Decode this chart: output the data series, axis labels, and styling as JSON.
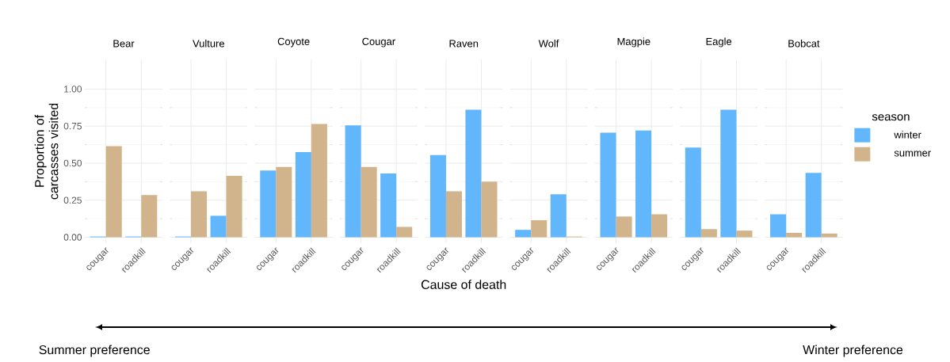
{
  "chart_data": [
    {
      "type": "bar",
      "title": "Bear",
      "ylabel": "Proportion of carcasses visited",
      "categories": [
        "cougar",
        "roadkill"
      ],
      "series": [
        {
          "color": "#62b6fb",
          "values": [
            0.005,
            0.005
          ]
        },
        {
          "color": "#d2b48c",
          "values": [
            0.615,
            0.285
          ]
        }
      ],
      "ylim": [
        -0.04,
        1.2
      ],
      "yticks": [
        {
          "value": 0,
          "label": "0.00"
        },
        {
          "value": 0.25,
          "label": "0.25"
        },
        {
          "value": 0.5,
          "label": "0.50"
        },
        {
          "value": 0.75,
          "label": "0.75"
        },
        {
          "value": 1,
          "label": "1.00"
        }
      ],
      "grid": true,
      "annotations": [
        "Summer preference"
      ]
    },
    {
      "type": "bar",
      "title": "Vulture",
      "categories": [
        "cougar",
        "roadkill"
      ],
      "series": [
        {
          "color": "#62b6fb",
          "values": [
            0.005,
            0.145
          ]
        },
        {
          "color": "#d2b48c",
          "values": [
            0.31,
            0.415
          ]
        }
      ],
      "ylim": [
        -0.04,
        1.2
      ],
      "yticks": [
        0,
        0.25,
        0.5,
        0.75,
        1
      ],
      "grid": true,
      "tick_labels": "x"
    },
    {
      "type": "bar",
      "title": "Coyote",
      "categories": [
        "cougar",
        "roadkill"
      ],
      "series": [
        {
          "color": "#62b6fb",
          "values": [
            0.45,
            0.575
          ]
        },
        {
          "color": "#d2b48c",
          "values": [
            0.475,
            0.765
          ]
        }
      ],
      "ylim": [
        -0.04,
        1.2
      ],
      "yticks": [
        0,
        0.25,
        0.5,
        0.75,
        1
      ],
      "grid": true,
      "tick_labels": "x"
    },
    {
      "type": "bar",
      "title": "Cougar",
      "categories": [
        "cougar",
        "roadkill"
      ],
      "series": [
        {
          "color": "#62b6fb",
          "values": [
            0.755,
            0.43
          ]
        },
        {
          "color": "#d2b48c",
          "values": [
            0.475,
            0.07
          ]
        }
      ],
      "ylim": [
        -0.04,
        1.2
      ],
      "yticks": [
        0,
        0.25,
        0.5,
        0.75,
        1
      ],
      "grid": true,
      "tick_labels": "x"
    },
    {
      "type": "bar",
      "title": "Raven",
      "xlabel": "Cause of death",
      "categories": [
        "cougar",
        "roadkill"
      ],
      "series": [
        {
          "color": "#62b6fb",
          "values": [
            0.555,
            0.86
          ]
        },
        {
          "color": "#d2b48c",
          "values": [
            0.31,
            0.375
          ]
        }
      ],
      "ylim": [
        -0.04,
        1.2
      ],
      "yticks": [
        0,
        0.25,
        0.5,
        0.75,
        1
      ],
      "grid": true,
      "tick_labels": "x"
    },
    {
      "type": "bar",
      "title": "Wolf",
      "categories": [
        "cougar",
        "roadkill"
      ],
      "series": [
        {
          "color": "#62b6fb",
          "values": [
            0.05,
            0.29
          ]
        },
        {
          "color": "#d2b48c",
          "values": [
            0.115,
            0.005
          ]
        }
      ],
      "ylim": [
        -0.04,
        1.2
      ],
      "yticks": [
        0,
        0.25,
        0.5,
        0.75,
        1
      ],
      "grid": true,
      "tick_labels": "x"
    },
    {
      "type": "bar",
      "title": "Magpie",
      "categories": [
        "cougar",
        "roadkill"
      ],
      "series": [
        {
          "color": "#62b6fb",
          "values": [
            0.705,
            0.72
          ]
        },
        {
          "color": "#d2b48c",
          "values": [
            0.14,
            0.155
          ]
        }
      ],
      "ylim": [
        -0.04,
        1.2
      ],
      "yticks": [
        0,
        0.25,
        0.5,
        0.75,
        1
      ],
      "grid": true,
      "tick_labels": "x"
    },
    {
      "type": "bar",
      "title": "Eagle",
      "categories": [
        "cougar",
        "roadkill"
      ],
      "series": [
        {
          "color": "#62b6fb",
          "values": [
            0.605,
            0.86
          ]
        },
        {
          "color": "#d2b48c",
          "values": [
            0.055,
            0.045
          ]
        }
      ],
      "ylim": [
        -0.04,
        1.2
      ],
      "yticks": [
        0,
        0.25,
        0.5,
        0.75,
        1
      ],
      "grid": true,
      "tick_labels": "x"
    },
    {
      "type": "bar",
      "title": "Bobcat",
      "legend_title": "season",
      "legend": "right",
      "categories": [
        "cougar",
        "roadkill"
      ],
      "series": [
        {
          "name": "winter",
          "color": "#62b6fb",
          "values": [
            0.155,
            0.435
          ]
        },
        {
          "name": "summer",
          "color": "#d2b48c",
          "values": [
            0.03,
            0.025
          ]
        }
      ],
      "ylim": [
        -0.04,
        1.2
      ],
      "yticks": [
        0,
        0.25,
        0.5,
        0.75,
        1
      ],
      "grid": true,
      "tick_labels": "x",
      "annotations": [
        "Winter preference"
      ]
    }
  ]
}
